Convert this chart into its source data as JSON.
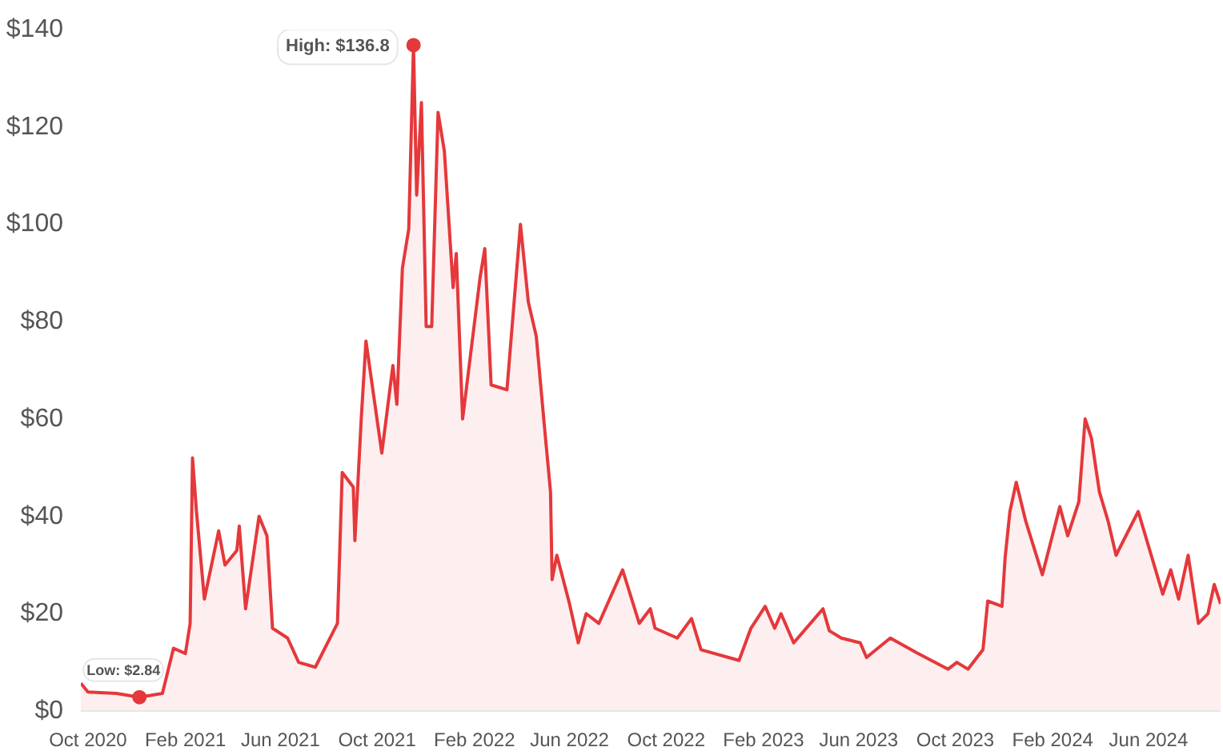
{
  "chart_data": {
    "type": "area",
    "color": "#e5383b",
    "x": [
      "2020-09-22",
      "2020-10-01",
      "2020-11-06",
      "2020-12-05",
      "2021-01-03",
      "2021-01-17",
      "2021-02-01",
      "2021-02-07",
      "2021-02-10",
      "2021-02-15",
      "2021-02-25",
      "2021-03-15",
      "2021-03-23",
      "2021-04-07",
      "2021-04-10",
      "2021-04-18",
      "2021-05-05",
      "2021-05-15",
      "2021-05-22",
      "2021-06-10",
      "2021-06-24",
      "2021-07-15",
      "2021-08-12",
      "2021-08-18",
      "2021-09-01",
      "2021-09-03",
      "2021-09-11",
      "2021-09-17",
      "2021-10-07",
      "2021-10-21",
      "2021-10-26",
      "2021-11-02",
      "2021-11-10",
      "2021-11-16",
      "2021-11-20",
      "2021-11-26",
      "2021-12-02",
      "2021-12-09",
      "2021-12-17",
      "2021-12-25",
      "2022-01-05",
      "2022-01-09",
      "2022-01-17",
      "2022-02-08",
      "2022-02-14",
      "2022-02-22",
      "2022-03-14",
      "2022-03-31",
      "2022-04-10",
      "2022-04-20",
      "2022-04-30",
      "2022-05-08",
      "2022-05-10",
      "2022-05-16",
      "2022-06-01",
      "2022-06-12",
      "2022-06-22",
      "2022-07-08",
      "2022-08-07",
      "2022-08-28",
      "2022-09-11",
      "2022-09-17",
      "2022-10-15",
      "2022-11-02",
      "2022-11-14",
      "2023-01-01",
      "2023-01-16",
      "2023-02-03",
      "2023-02-15",
      "2023-02-23",
      "2023-03-11",
      "2023-04-17",
      "2023-04-25",
      "2023-05-10",
      "2023-06-03",
      "2023-06-11",
      "2023-07-11",
      "2023-08-13",
      "2023-09-22",
      "2023-10-03",
      "2023-10-17",
      "2023-11-05",
      "2023-11-11",
      "2023-11-29",
      "2023-12-03",
      "2023-12-09",
      "2023-12-17",
      "2023-12-29",
      "2024-01-19",
      "2024-02-10",
      "2024-02-20",
      "2024-03-05",
      "2024-03-13",
      "2024-03-21",
      "2024-03-31",
      "2024-04-11",
      "2024-04-21",
      "2024-05-19",
      "2024-06-19",
      "2024-06-29",
      "2024-07-09",
      "2024-07-21",
      "2024-08-03",
      "2024-08-15",
      "2024-08-23",
      "2024-08-31"
    ],
    "values": [
      5.7,
      3.9,
      3.6,
      2.84,
      3.6,
      12.9,
      11.8,
      18,
      52,
      41,
      23,
      37,
      30,
      33,
      38,
      21,
      40,
      36,
      17,
      15,
      10,
      9,
      18,
      49,
      46,
      35,
      60,
      76,
      53,
      71,
      63,
      91,
      99,
      136.8,
      106,
      125,
      79,
      79,
      123,
      115,
      87,
      94,
      60,
      89,
      95,
      67,
      66,
      100,
      84,
      77,
      59,
      45,
      27,
      32,
      22,
      14,
      20,
      18,
      29,
      18,
      21,
      17,
      15,
      19,
      12.6,
      10.4,
      17,
      21.5,
      17,
      20,
      14,
      21,
      16.5,
      15,
      14,
      11,
      15,
      12,
      8.6,
      10,
      8.6,
      12.6,
      22.6,
      21.5,
      31.6,
      41,
      47,
      39,
      28,
      42,
      36,
      43,
      60,
      56,
      45,
      39,
      32,
      41,
      24,
      29,
      23,
      32,
      18,
      20,
      26,
      22
    ],
    "xticks": [
      {
        "value": "2020-10-01",
        "label": "Oct 2020"
      },
      {
        "value": "2021-02-01",
        "label": "Feb 2021"
      },
      {
        "value": "2021-06-01",
        "label": "Jun 2021"
      },
      {
        "value": "2021-10-01",
        "label": "Oct 2021"
      },
      {
        "value": "2022-02-01",
        "label": "Feb 2022"
      },
      {
        "value": "2022-06-01",
        "label": "Jun 2022"
      },
      {
        "value": "2022-10-01",
        "label": "Oct 2022"
      },
      {
        "value": "2023-02-01",
        "label": "Feb 2023"
      },
      {
        "value": "2023-06-01",
        "label": "Jun 2023"
      },
      {
        "value": "2023-10-01",
        "label": "Oct 2023"
      },
      {
        "value": "2024-02-01",
        "label": "Feb 2024"
      },
      {
        "value": "2024-06-01",
        "label": "Jun 2024"
      }
    ],
    "xlim": [
      "2020-09-22",
      "2024-08-31"
    ],
    "ylim": [
      0,
      140
    ],
    "yticks": [
      {
        "value": 0,
        "label": "$0"
      },
      {
        "value": 20,
        "label": "$20"
      },
      {
        "value": 40,
        "label": "$40"
      },
      {
        "value": 60,
        "label": "$60"
      },
      {
        "value": 80,
        "label": "$80"
      },
      {
        "value": 100,
        "label": "$100"
      },
      {
        "value": 120,
        "label": "$120"
      },
      {
        "value": 140,
        "label": "$140"
      }
    ],
    "grid": false,
    "annotations": [
      {
        "text": "High: $136.8",
        "x": "2021-11-16",
        "y": 136.8
      },
      {
        "text": "Low: $2.84",
        "x": "2020-12-05",
        "y": 2.84
      }
    ]
  }
}
